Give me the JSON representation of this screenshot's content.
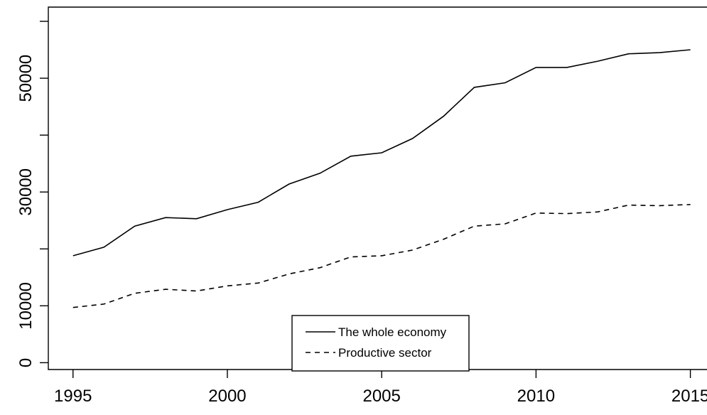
{
  "chart_data": {
    "type": "line",
    "x": [
      1995,
      1996,
      1997,
      1998,
      1999,
      2000,
      2001,
      2002,
      2003,
      2004,
      2005,
      2006,
      2007,
      2008,
      2009,
      2010,
      2011,
      2012,
      2013,
      2014,
      2015
    ],
    "series": [
      {
        "name": "The whole economy",
        "line_style": "solid",
        "values": [
          18800,
          20300,
          24000,
          25500,
          25300,
          26900,
          28200,
          31400,
          33300,
          36300,
          36900,
          39400,
          43300,
          48400,
          49200,
          51900,
          51900,
          53000,
          54300,
          54500,
          55000
        ]
      },
      {
        "name": "Productive sector",
        "line_style": "dashed",
        "values": [
          9700,
          10300,
          12200,
          12900,
          12600,
          13500,
          14000,
          15600,
          16700,
          18600,
          18800,
          19800,
          21700,
          24000,
          24400,
          26300,
          26200,
          26500,
          27700,
          27600,
          27800
        ]
      }
    ],
    "x_ticks": [
      1995,
      2000,
      2005,
      2010,
      2015
    ],
    "y_ticks": [
      0,
      10000,
      30000,
      50000
    ],
    "y_minor_ticks": [
      20000,
      40000,
      60000
    ],
    "xlim": [
      1994.2,
      2015.7
    ],
    "ylim": [
      -1200,
      62500
    ],
    "legend_position": "bottom-center",
    "grid": false,
    "title": "",
    "xlabel": "",
    "ylabel": ""
  }
}
